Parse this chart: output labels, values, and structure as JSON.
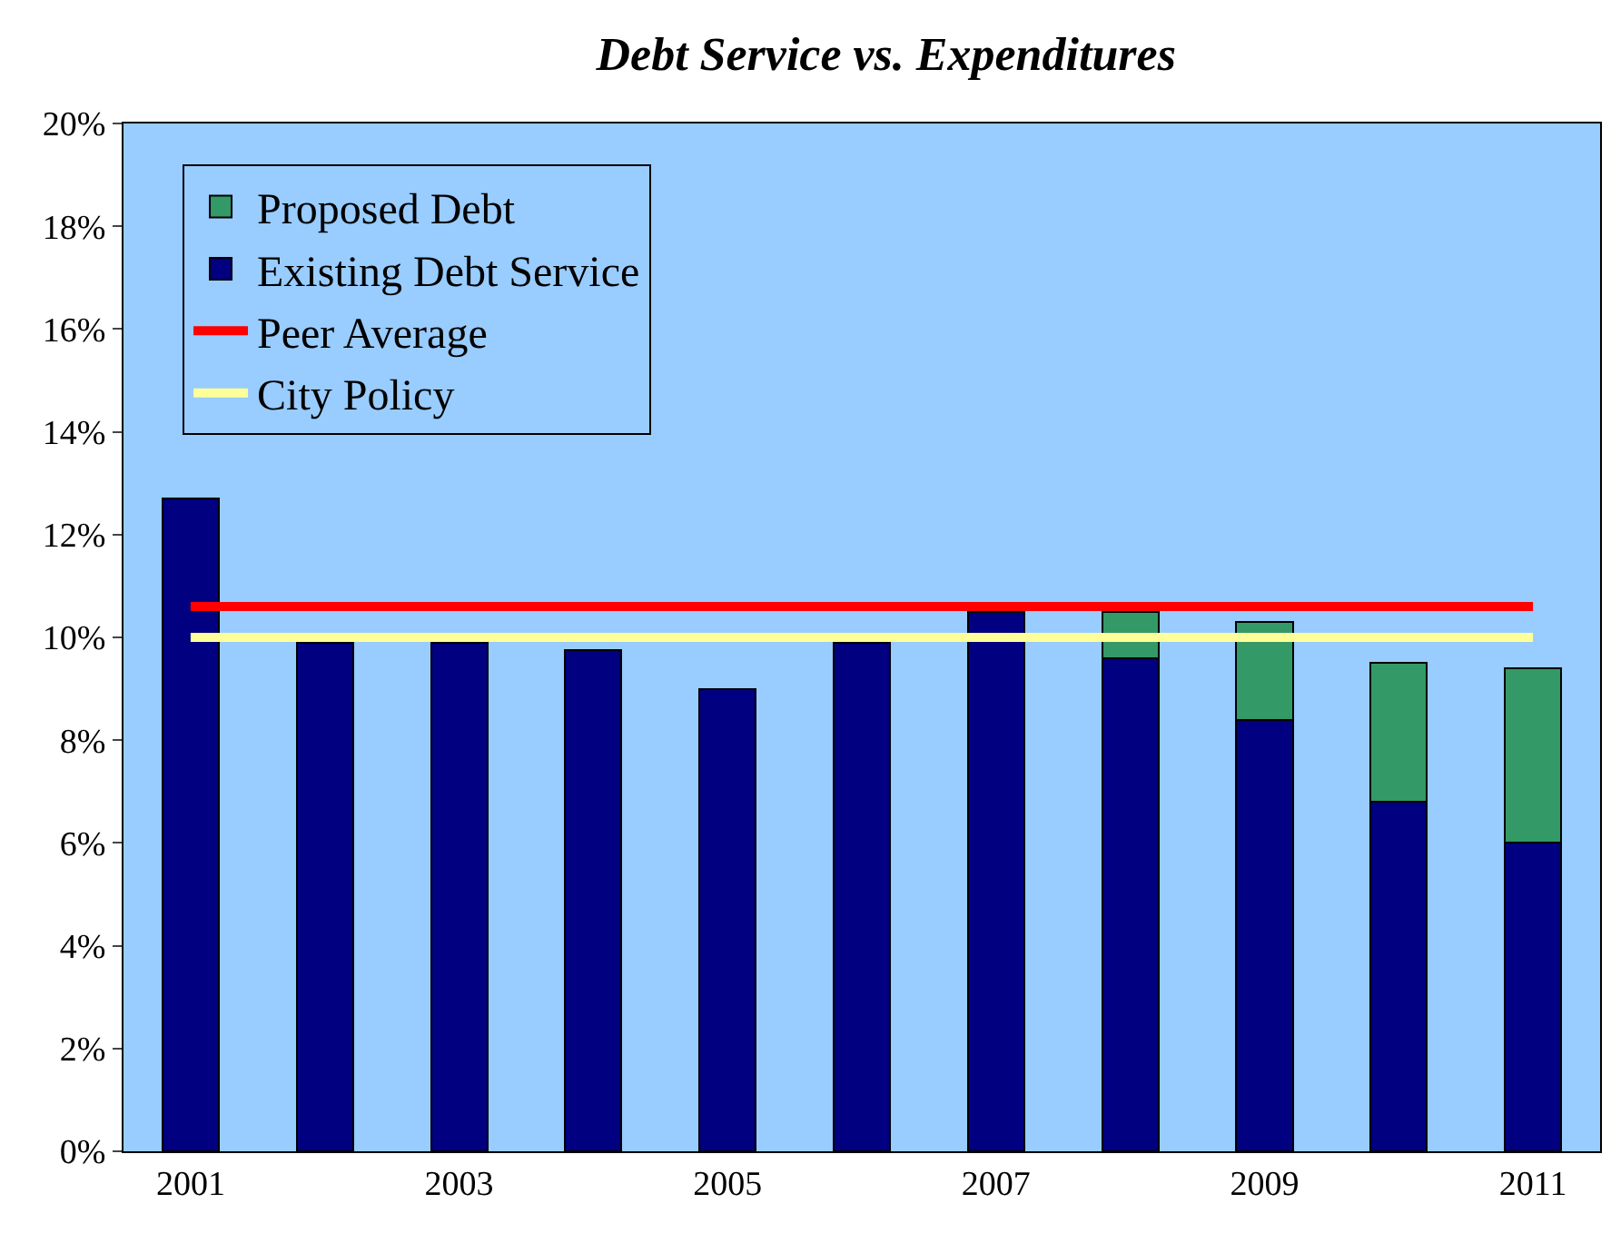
{
  "chart_data": {
    "type": "bar",
    "title": "Debt Service vs. Expenditures",
    "stacked": true,
    "categories": [
      "2001",
      null,
      "2003",
      null,
      "2005",
      null,
      "2007",
      null,
      "2009",
      null,
      "2011"
    ],
    "series": [
      {
        "name": "Existing Debt Service",
        "color": "#000080",
        "values": [
          12.7,
          9.9,
          9.9,
          9.75,
          9.0,
          9.9,
          10.5,
          9.6,
          8.4,
          6.8,
          6.0
        ]
      },
      {
        "name": "Proposed Debt",
        "color": "#339966",
        "values": [
          null,
          null,
          null,
          null,
          null,
          null,
          null,
          0.9,
          1.9,
          2.7,
          3.4
        ]
      },
      {
        "name": "Peer Average",
        "type": "line",
        "color": "#ff0000",
        "values": [
          10.6,
          10.6,
          10.6,
          10.6,
          10.6,
          10.6,
          10.6,
          10.6,
          10.6,
          10.6,
          10.6
        ]
      },
      {
        "name": "City Policy",
        "type": "line",
        "color": "#ffff99",
        "values": [
          10.0,
          10.0,
          10.0,
          10.0,
          10.0,
          10.0,
          10.0,
          10.0,
          10.0,
          10.0,
          10.0
        ]
      }
    ],
    "ylim": [
      0,
      20
    ],
    "yticks": [
      {
        "value": 0,
        "label": "0%"
      },
      {
        "value": 2,
        "label": "2%"
      },
      {
        "value": 4,
        "label": "4%"
      },
      {
        "value": 6,
        "label": "6%"
      },
      {
        "value": 8,
        "label": "8%"
      },
      {
        "value": 10,
        "label": "10%"
      },
      {
        "value": 12,
        "label": "12%"
      },
      {
        "value": 14,
        "label": "14%"
      },
      {
        "value": 16,
        "label": "16%"
      },
      {
        "value": 18,
        "label": "18%"
      },
      {
        "value": 20,
        "label": "20%"
      }
    ],
    "grid": false,
    "legend": "top left",
    "marker": "none",
    "line_style": "solid"
  }
}
